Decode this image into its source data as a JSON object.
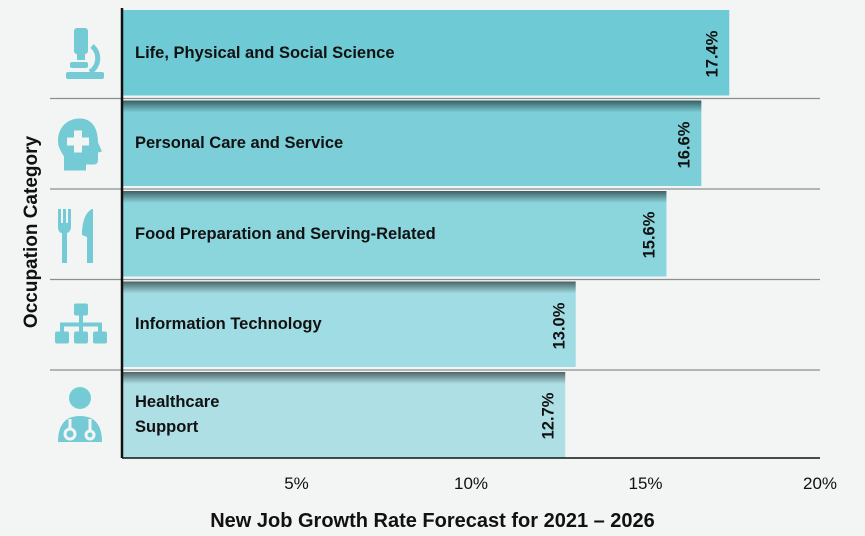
{
  "chart_data": {
    "type": "bar",
    "orientation": "horizontal",
    "categories": [
      "Life, Physical and Social Science",
      "Personal Care and Service",
      "Food Preparation and Serving-Related",
      "Information Technology",
      "Healthcare Support"
    ],
    "category_lines": [
      [
        "Life, Physical and Social Science"
      ],
      [
        "Personal Care and Service"
      ],
      [
        "Food Preparation and Serving-Related"
      ],
      [
        "Information Technology"
      ],
      [
        "Healthcare",
        "Support"
      ]
    ],
    "values": [
      17.4,
      16.6,
      15.6,
      13.0,
      12.7
    ],
    "value_labels": [
      "17.4%",
      "16.6%",
      "15.6%",
      "13.0%",
      "12.7%"
    ],
    "icons": [
      "microscope-icon",
      "head-medical-cross-icon",
      "fork-knife-icon",
      "network-hierarchy-icon",
      "doctor-stethoscope-icon"
    ],
    "xlabel": "New Job Growth Rate Forecast for 2021 – 2026",
    "ylabel": "Occupation Category",
    "xticks": [
      5,
      10,
      15,
      20
    ],
    "xtick_labels": [
      "5%",
      "10%",
      "15%",
      "20%"
    ],
    "xlim": [
      0,
      20
    ],
    "bar_colors": [
      "#6ecad4",
      "#7ccfd8",
      "#8bd5dd",
      "#a0dce3",
      "#addfe5"
    ],
    "icon_color": "#74cbd5"
  }
}
